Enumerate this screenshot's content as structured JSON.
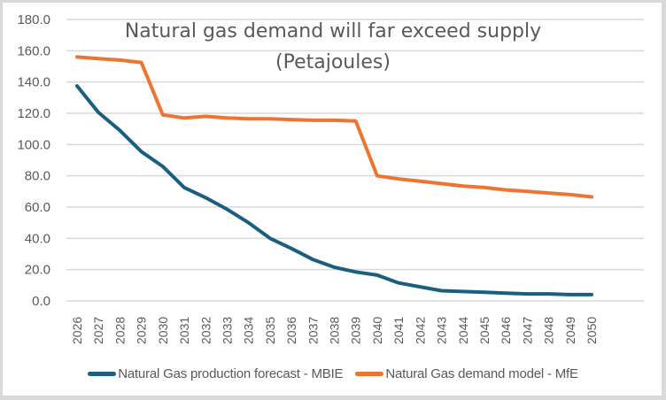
{
  "chart_data": {
    "type": "line",
    "title": "Natural gas demand will far exceed supply",
    "subtitle": "(Petajoules)",
    "xlabel": "",
    "ylabel": "",
    "ylim": [
      0,
      180
    ],
    "yticks": [
      "0.0",
      "20.0",
      "40.0",
      "60.0",
      "80.0",
      "100.0",
      "120.0",
      "140.0",
      "160.0",
      "180.0"
    ],
    "ytick_values": [
      0,
      20,
      40,
      60,
      80,
      100,
      120,
      140,
      160,
      180
    ],
    "grid": true,
    "legend_position": "bottom",
    "x": [
      "2026",
      "2027",
      "2028",
      "2029",
      "2030",
      "2031",
      "2032",
      "2033",
      "2034",
      "2035",
      "2036",
      "2037",
      "2038",
      "2039",
      "2040",
      "2041",
      "2042",
      "2043",
      "2044",
      "2045",
      "2046",
      "2047",
      "2048",
      "2049",
      "2050"
    ],
    "series": [
      {
        "name": "Natural Gas production forecast - MBIE",
        "color": "#1a5e80",
        "values": [
          137.5,
          120.5,
          109,
          95.5,
          86,
          72.5,
          66,
          58.5,
          50,
          40,
          33.5,
          26.5,
          21.5,
          18.5,
          16.5,
          11.5,
          9,
          6.5,
          6,
          5.5,
          5,
          4.5,
          4.5,
          4,
          4
        ]
      },
      {
        "name": "Natural Gas demand model - MfE",
        "color": "#ed7431",
        "values": [
          156,
          155,
          154,
          152.5,
          119,
          117,
          118,
          117,
          116.5,
          116.5,
          116,
          115.5,
          115.5,
          115,
          80,
          78,
          76.5,
          75,
          73.5,
          72.5,
          71,
          70,
          69,
          68,
          66.5
        ]
      }
    ]
  }
}
